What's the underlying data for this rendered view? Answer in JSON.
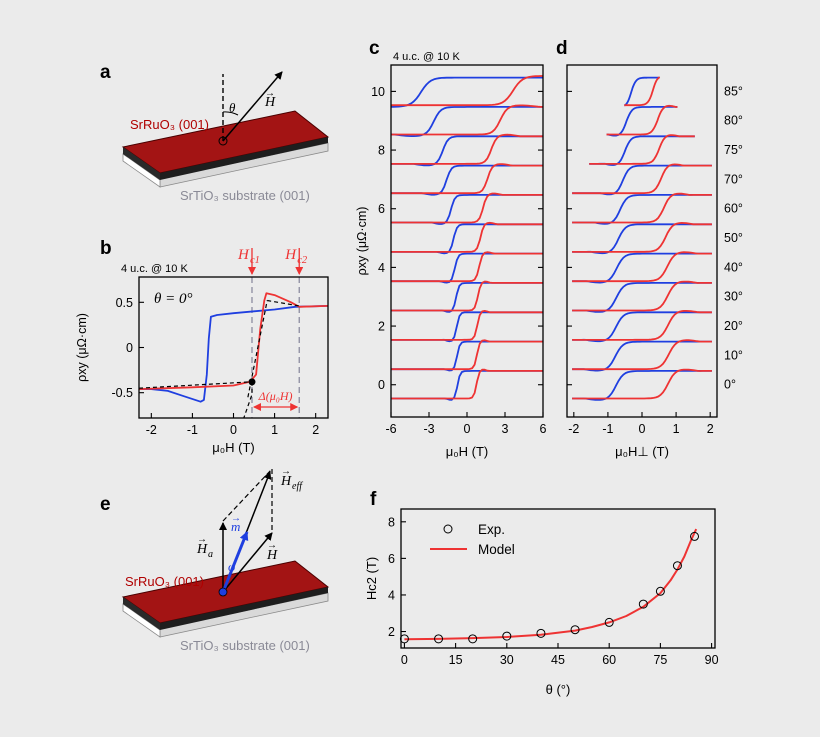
{
  "colors": {
    "background": "#ebebeb",
    "blue": "#1f3fe0",
    "red": "#ee3333",
    "film": "#a31414",
    "film_label": "#b00000",
    "substrate_label": "#8a8a96",
    "dashed": "#000000",
    "guide": "#8c8ca0"
  },
  "panels": {
    "a": {
      "label": "a",
      "film": "SrRuO₃ (001)",
      "substrate": "SrTiO₃ substrate (001)",
      "theta": "θ",
      "field": "H"
    },
    "e": {
      "label": "e",
      "film": "SrRuO₃ (001)",
      "substrate": "SrTiO₃ substrate (001)",
      "Ha": "H",
      "Ha_sub": "a",
      "Heff": "H",
      "Heff_sub": "eff",
      "m": "m",
      "phi": "φ",
      "field": "H"
    }
  },
  "chart_data": [
    {
      "id": "b",
      "type": "line",
      "panel_label": "b",
      "condition": "4 u.c. @ 10 K",
      "annotation": "θ = 0°",
      "xlabel": "μ₀H (T)",
      "ylabel": "ρxy (μΩ·cm)",
      "xlim": [
        -2.3,
        2.3
      ],
      "ylim": [
        -0.78,
        0.78
      ],
      "xticks": [
        -2,
        -1,
        0,
        1,
        2
      ],
      "yticks": [
        -0.5,
        0.0,
        0.5
      ],
      "markers": [
        {
          "name": "Hc1",
          "label": "H",
          "sub": "c1",
          "x": 0.45
        },
        {
          "name": "Hc2",
          "label": "H",
          "sub": "c2",
          "x": 1.6
        }
      ],
      "delta_label": "Δ(μ₀H)",
      "series": [
        {
          "name": "sweep-down",
          "color": "blue",
          "x": [
            2.3,
            1.5,
            1.0,
            0.5,
            0.0,
            -0.4,
            -0.55,
            -0.6,
            -0.65,
            -0.72,
            -0.8,
            -1.2,
            -1.6,
            -2.0,
            -2.3
          ],
          "y": [
            0.46,
            0.45,
            0.42,
            0.4,
            0.38,
            0.36,
            0.34,
            0.1,
            -0.3,
            -0.58,
            -0.6,
            -0.54,
            -0.48,
            -0.46,
            -0.46
          ]
        },
        {
          "name": "sweep-up",
          "color": "red",
          "x": [
            -2.3,
            -1.0,
            0.0,
            0.4,
            0.55,
            0.65,
            0.75,
            0.8,
            1.0,
            1.4,
            1.6,
            2.3
          ],
          "y": [
            -0.46,
            -0.44,
            -0.42,
            -0.38,
            -0.3,
            0.2,
            0.52,
            0.6,
            0.58,
            0.5,
            0.45,
            0.46
          ]
        },
        {
          "name": "linear-fit-low",
          "color": "dashed",
          "dashed": true,
          "x": [
            -2.3,
            0.45
          ],
          "y": [
            -0.45,
            -0.38
          ]
        },
        {
          "name": "linear-fit-switch",
          "color": "dashed",
          "dashed": true,
          "x": [
            0.35,
            0.82
          ],
          "y": [
            -0.55,
            0.52
          ]
        },
        {
          "name": "linear-fit-high",
          "color": "dashed",
          "dashed": true,
          "x": [
            0.82,
            1.6
          ],
          "y": [
            0.52,
            0.46
          ]
        },
        {
          "name": "extrapolation",
          "color": "dashed",
          "dashed": true,
          "x": [
            0.45,
            0.45,
            0.25
          ],
          "y": [
            -0.38,
            -0.52,
            -0.78
          ]
        }
      ],
      "point": {
        "x": 0.45,
        "y": -0.38
      }
    },
    {
      "id": "c",
      "type": "line",
      "panel_label": "c",
      "condition": "4 u.c. @ 10 K",
      "xlabel": "μ₀H (T)",
      "ylabel": "ρxy (μΩ·cm)",
      "xlim": [
        -6,
        6
      ],
      "ylim": [
        -1.1,
        10.9
      ],
      "xticks": [
        -6,
        -3,
        0,
        3,
        6
      ],
      "yticks": [
        0,
        2,
        4,
        6,
        8,
        10
      ],
      "offset_step": 1.0,
      "angles": [
        0,
        10,
        20,
        30,
        40,
        50,
        60,
        70,
        75,
        80,
        85
      ],
      "switch_fields": [
        0.75,
        0.78,
        0.8,
        0.85,
        0.95,
        1.05,
        1.25,
        1.6,
        1.9,
        2.6,
        3.6
      ],
      "amplitude": 0.47
    },
    {
      "id": "d",
      "type": "line",
      "panel_label": "d",
      "xlabel": "μ₀H⊥ (T)",
      "xlim": [
        -2.2,
        2.2
      ],
      "ylim": [
        -1.1,
        10.9
      ],
      "xticks": [
        -2,
        -1,
        0,
        1,
        2
      ],
      "angles": [
        0,
        10,
        20,
        30,
        40,
        50,
        60,
        70,
        75,
        80,
        85
      ],
      "angle_labels": [
        "0°",
        "10°",
        "20°",
        "30°",
        "40°",
        "50°",
        "60°",
        "70°",
        "75°",
        "80°",
        "85°"
      ],
      "switch_fields": [
        0.75,
        0.77,
        0.75,
        0.74,
        0.73,
        0.68,
        0.63,
        0.55,
        0.49,
        0.45,
        0.31
      ],
      "range_fields": [
        2.05,
        2.05,
        2.05,
        2.05,
        2.05,
        2.05,
        2.05,
        2.05,
        1.55,
        1.04,
        0.52
      ],
      "amplitude": 0.47
    },
    {
      "id": "f",
      "type": "scatter",
      "panel_label": "f",
      "xlabel": "θ (°)",
      "ylabel": "Hc2 (T)",
      "xlim": [
        -1,
        91
      ],
      "ylim": [
        1.1,
        8.7
      ],
      "xticks": [
        0,
        15,
        30,
        45,
        60,
        75,
        90
      ],
      "yticks": [
        2,
        4,
        6,
        8
      ],
      "legend": [
        {
          "name": "Exp.",
          "marker": "circle"
        },
        {
          "name": "Model",
          "marker": "line"
        }
      ],
      "exp_x": [
        0,
        10,
        20,
        30,
        40,
        50,
        60,
        70,
        75,
        80,
        85
      ],
      "exp_y": [
        1.6,
        1.6,
        1.6,
        1.75,
        1.9,
        2.1,
        2.5,
        3.5,
        4.2,
        5.6,
        7.2
      ],
      "model_x": [
        0,
        10,
        20,
        30,
        40,
        50,
        55,
        60,
        65,
        70,
        75,
        78,
        80,
        82,
        84,
        85.5
      ],
      "model_y": [
        1.58,
        1.6,
        1.64,
        1.7,
        1.82,
        2.05,
        2.25,
        2.5,
        2.85,
        3.35,
        4.1,
        4.8,
        5.4,
        6.1,
        7.0,
        7.6
      ]
    }
  ]
}
